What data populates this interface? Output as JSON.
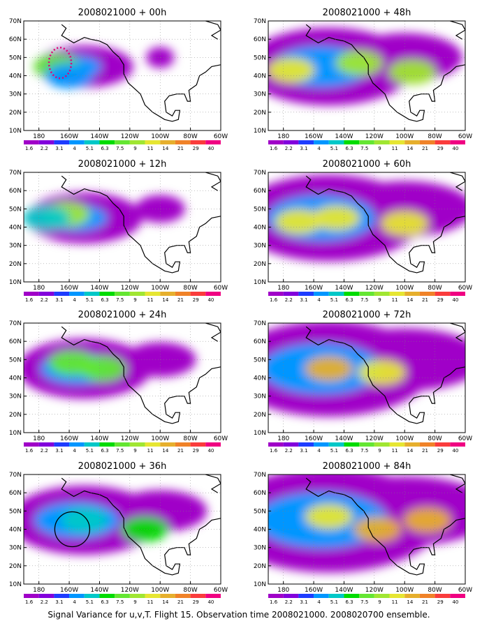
{
  "figure_caption": "Signal Variance for u,v,T. Flight 15. Observation time 2008021000. 2008020700 ensemble.",
  "colorbar": {
    "labels": [
      "1.6",
      "2.2",
      "3.1",
      "4",
      "5.1",
      "6.3",
      "7.5",
      "9",
      "11",
      "14",
      "21",
      "29",
      "40"
    ],
    "colors": [
      "#a000c8",
      "#8200dc",
      "#1e3cff",
      "#0096ff",
      "#00c8c8",
      "#00dc00",
      "#64e632",
      "#a0e632",
      "#e6e632",
      "#e6af2d",
      "#f08228",
      "#fa3c3c",
      "#f00082"
    ]
  },
  "axes": {
    "x_ticks": [
      "180",
      "160W",
      "140W",
      "120W",
      "100W",
      "80W",
      "60W"
    ],
    "y_ticks": [
      "10N",
      "20N",
      "30N",
      "40N",
      "50N",
      "60N",
      "70N"
    ],
    "xlim": [
      -190,
      -60
    ],
    "ylim": [
      10,
      70
    ]
  },
  "chart_data": [
    {
      "type": "heatmap",
      "title": "2008021000 + 00h",
      "lead_hours": 0,
      "units_scale": [
        "1.6",
        "2.2",
        "3.1",
        "4",
        "5.1",
        "6.3",
        "7.5",
        "9",
        "11",
        "14",
        "21",
        "29",
        "40"
      ],
      "features": [
        {
          "lon": -168,
          "lat": 45,
          "level": 7.5
        },
        {
          "lon": -160,
          "lat": 40,
          "level": 4
        }
      ],
      "annotation": {
        "shape": "dotted-outline",
        "color": "#e0007a",
        "lon": -166,
        "lat": 47
      }
    },
    {
      "type": "heatmap",
      "title": "2008021000 + 12h",
      "lead_hours": 12,
      "features": [
        {
          "lon": -162,
          "lat": 47,
          "level": 9
        },
        {
          "lon": -175,
          "lat": 45,
          "level": 5.1
        }
      ]
    },
    {
      "type": "heatmap",
      "title": "2008021000 + 24h",
      "lead_hours": 24,
      "features": [
        {
          "lon": -158,
          "lat": 48,
          "level": 7.5
        },
        {
          "lon": -138,
          "lat": 45,
          "level": 7.5
        }
      ]
    },
    {
      "type": "heatmap",
      "title": "2008021000 + 36h",
      "lead_hours": 36,
      "features": [
        {
          "lon": -150,
          "lat": 45,
          "level": 5.1
        },
        {
          "lon": -110,
          "lat": 40,
          "level": 6.3
        }
      ],
      "annotation": {
        "shape": "circle",
        "color": "#000000",
        "lon": -158,
        "lat": 40
      }
    },
    {
      "type": "heatmap",
      "title": "2008021000 + 48h",
      "lead_hours": 48,
      "features": [
        {
          "lon": -175,
          "lat": 43,
          "level": 11
        },
        {
          "lon": -130,
          "lat": 47,
          "level": 9
        },
        {
          "lon": -95,
          "lat": 42,
          "level": 9
        }
      ]
    },
    {
      "type": "heatmap",
      "title": "2008021000 + 60h",
      "lead_hours": 60,
      "features": [
        {
          "lon": -170,
          "lat": 43,
          "level": 11
        },
        {
          "lon": -145,
          "lat": 45,
          "level": 11
        },
        {
          "lon": -100,
          "lat": 42,
          "level": 11
        }
      ]
    },
    {
      "type": "heatmap",
      "title": "2008021000 + 72h",
      "lead_hours": 72,
      "features": [
        {
          "lon": -150,
          "lat": 45,
          "level": 14
        },
        {
          "lon": -115,
          "lat": 43,
          "level": 11
        }
      ]
    },
    {
      "type": "heatmap",
      "title": "2008021000 + 84h",
      "lead_hours": 84,
      "features": [
        {
          "lon": -150,
          "lat": 47,
          "level": 11
        },
        {
          "lon": -118,
          "lat": 40,
          "level": 14
        },
        {
          "lon": -85,
          "lat": 45,
          "level": 14
        }
      ]
    }
  ]
}
